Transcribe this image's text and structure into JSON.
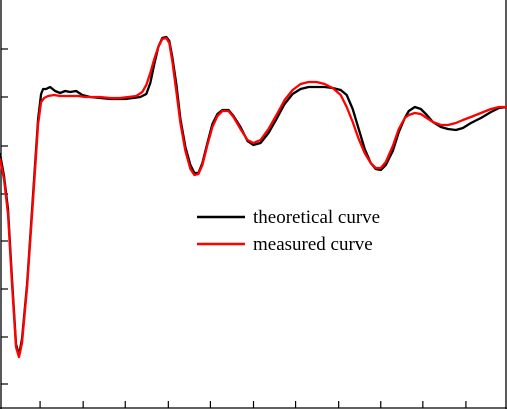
{
  "chart_data": {
    "type": "line",
    "title": "",
    "xlabel": "",
    "ylabel": "",
    "grid": false,
    "legend_position": "center-right",
    "xlim": [
      0,
      506
    ],
    "ylim": [
      0,
      409
    ],
    "y_ticks": [
      25,
      72,
      120,
      168,
      215,
      263,
      312,
      360
    ],
    "x_ticks": [
      40,
      83,
      125,
      168,
      210,
      253,
      295,
      338,
      380,
      422,
      465
    ],
    "series": [
      {
        "name": "theoretical curve",
        "color": "#000000",
        "points": [
          [
            0,
            255
          ],
          [
            4,
            233
          ],
          [
            8,
            200
          ],
          [
            12,
            130
          ],
          [
            16,
            65
          ],
          [
            19,
            54
          ],
          [
            22,
            70
          ],
          [
            27,
            125
          ],
          [
            33,
            215
          ],
          [
            38,
            290
          ],
          [
            41,
            315
          ],
          [
            43,
            320
          ],
          [
            46,
            320
          ],
          [
            50,
            322
          ],
          [
            55,
            318
          ],
          [
            60,
            316
          ],
          [
            65,
            318
          ],
          [
            70,
            317
          ],
          [
            76,
            318
          ],
          [
            82,
            314
          ],
          [
            90,
            312
          ],
          [
            100,
            311
          ],
          [
            110,
            310
          ],
          [
            118,
            310
          ],
          [
            125,
            310
          ],
          [
            133,
            311
          ],
          [
            140,
            312
          ],
          [
            146,
            315
          ],
          [
            150,
            326
          ],
          [
            154,
            345
          ],
          [
            158,
            362
          ],
          [
            162,
            371
          ],
          [
            166,
            372
          ],
          [
            169,
            368
          ],
          [
            172,
            352
          ],
          [
            176,
            325
          ],
          [
            180,
            290
          ],
          [
            185,
            262
          ],
          [
            190,
            244
          ],
          [
            194,
            236
          ],
          [
            198,
            236
          ],
          [
            202,
            246
          ],
          [
            207,
            266
          ],
          [
            212,
            285
          ],
          [
            217,
            295
          ],
          [
            222,
            299
          ],
          [
            228,
            299
          ],
          [
            233,
            293
          ],
          [
            240,
            282
          ],
          [
            247,
            268
          ],
          [
            253,
            264
          ],
          [
            260,
            266
          ],
          [
            268,
            276
          ],
          [
            276,
            290
          ],
          [
            284,
            305
          ],
          [
            292,
            315
          ],
          [
            300,
            320
          ],
          [
            308,
            322
          ],
          [
            316,
            322
          ],
          [
            324,
            322
          ],
          [
            332,
            321
          ],
          [
            340,
            319
          ],
          [
            346,
            314
          ],
          [
            352,
            300
          ],
          [
            358,
            280
          ],
          [
            364,
            260
          ],
          [
            370,
            246
          ],
          [
            375,
            240
          ],
          [
            380,
            239
          ],
          [
            385,
            244
          ],
          [
            392,
            258
          ],
          [
            398,
            277
          ],
          [
            404,
            291
          ],
          [
            408,
            298
          ],
          [
            414,
            302
          ],
          [
            420,
            300
          ],
          [
            426,
            294
          ],
          [
            432,
            287
          ],
          [
            440,
            282
          ],
          [
            447,
            280
          ],
          [
            455,
            279
          ],
          [
            462,
            281
          ],
          [
            470,
            286
          ],
          [
            480,
            291
          ],
          [
            490,
            297
          ],
          [
            498,
            301
          ],
          [
            506,
            302
          ]
        ]
      },
      {
        "name": "measured curve",
        "color": "#ff0000",
        "points": [
          [
            0,
            250
          ],
          [
            4,
            230
          ],
          [
            8,
            195
          ],
          [
            12,
            125
          ],
          [
            16,
            62
          ],
          [
            19,
            52
          ],
          [
            22,
            66
          ],
          [
            27,
            122
          ],
          [
            33,
            210
          ],
          [
            38,
            285
          ],
          [
            41,
            307
          ],
          [
            44,
            311
          ],
          [
            48,
            313
          ],
          [
            54,
            314
          ],
          [
            60,
            313
          ],
          [
            66,
            313
          ],
          [
            72,
            313
          ],
          [
            78,
            313
          ],
          [
            85,
            312
          ],
          [
            92,
            312
          ],
          [
            100,
            312
          ],
          [
            110,
            311
          ],
          [
            120,
            311
          ],
          [
            128,
            312
          ],
          [
            136,
            313
          ],
          [
            142,
            317
          ],
          [
            146,
            324
          ],
          [
            150,
            336
          ],
          [
            154,
            350
          ],
          [
            158,
            362
          ],
          [
            162,
            370
          ],
          [
            166,
            371
          ],
          [
            169,
            366
          ],
          [
            172,
            348
          ],
          [
            176,
            318
          ],
          [
            180,
            286
          ],
          [
            185,
            258
          ],
          [
            190,
            240
          ],
          [
            194,
            234
          ],
          [
            198,
            235
          ],
          [
            202,
            244
          ],
          [
            207,
            264
          ],
          [
            212,
            282
          ],
          [
            217,
            293
          ],
          [
            222,
            298
          ],
          [
            228,
            298
          ],
          [
            233,
            292
          ],
          [
            240,
            280
          ],
          [
            247,
            269
          ],
          [
            253,
            266
          ],
          [
            260,
            269
          ],
          [
            268,
            280
          ],
          [
            276,
            294
          ],
          [
            284,
            309
          ],
          [
            292,
            319
          ],
          [
            300,
            325
          ],
          [
            308,
            327
          ],
          [
            316,
            327
          ],
          [
            324,
            325
          ],
          [
            332,
            321
          ],
          [
            340,
            314
          ],
          [
            346,
            302
          ],
          [
            352,
            287
          ],
          [
            358,
            270
          ],
          [
            364,
            256
          ],
          [
            370,
            246
          ],
          [
            375,
            241
          ],
          [
            380,
            241
          ],
          [
            385,
            247
          ],
          [
            392,
            263
          ],
          [
            398,
            280
          ],
          [
            404,
            291
          ],
          [
            408,
            294
          ],
          [
            414,
            296
          ],
          [
            420,
            295
          ],
          [
            426,
            291
          ],
          [
            432,
            287
          ],
          [
            440,
            284
          ],
          [
            447,
            284
          ],
          [
            455,
            286
          ],
          [
            462,
            289
          ],
          [
            470,
            292
          ],
          [
            480,
            296
          ],
          [
            490,
            300
          ],
          [
            498,
            302
          ],
          [
            506,
            302
          ]
        ]
      }
    ]
  }
}
